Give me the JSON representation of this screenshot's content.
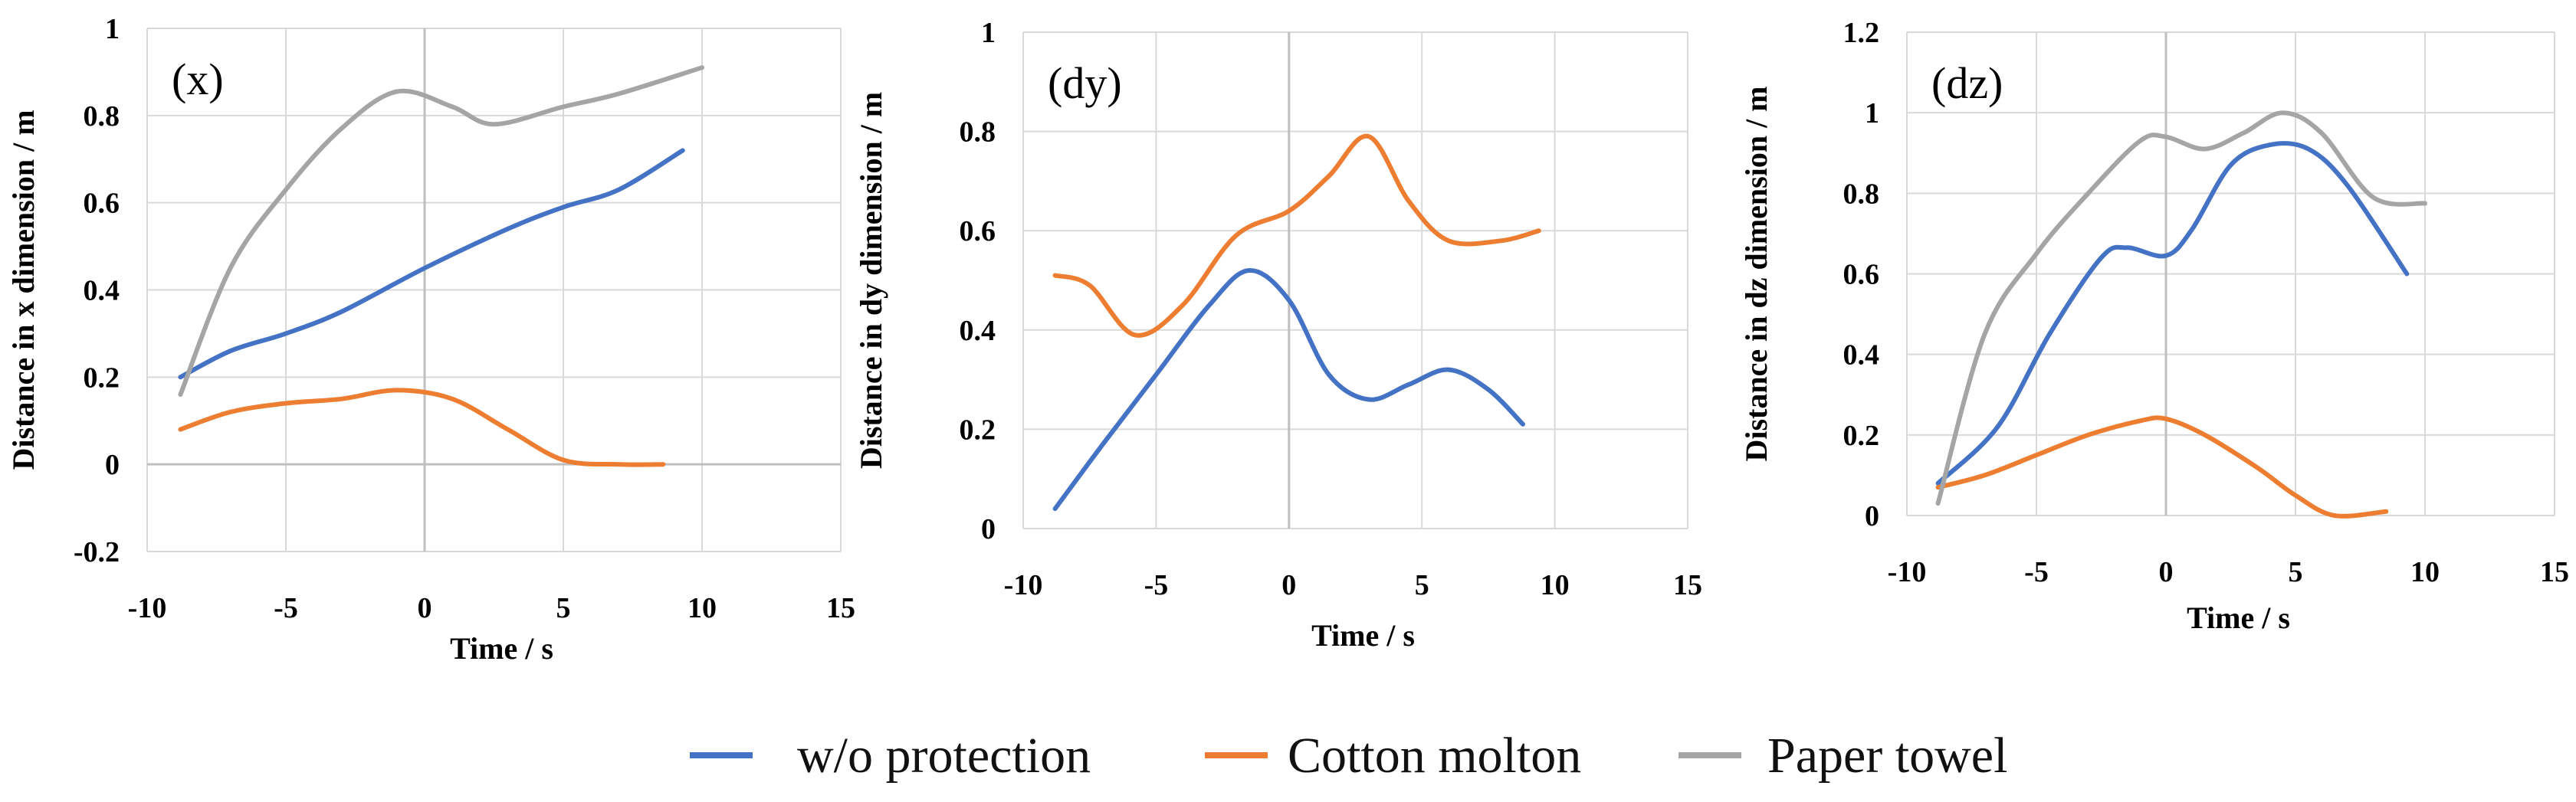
{
  "colors": {
    "w/o protection": "#4472C4",
    "Cotton molton": "#ED7D31",
    "Paper towel": "#A5A5A5",
    "grid": "#D9D9D9",
    "zero_axis": "#BFBFBF"
  },
  "legend": {
    "items": [
      "w/o protection",
      "Cotton molton",
      "Paper towel"
    ],
    "position": "bottom-center"
  },
  "chart_data": [
    {
      "type": "line",
      "panel_label": "(x)",
      "title": "",
      "xlabel": "Time / s",
      "ylabel": "Distance in x dimension / m",
      "xlim": [
        -10,
        15
      ],
      "ylim": [
        -0.2,
        1
      ],
      "xticks": [
        -10,
        -5,
        0,
        5,
        10,
        15
      ],
      "yticks": [
        -0.2,
        0,
        0.2,
        0.4,
        0.6,
        0.8,
        1
      ],
      "ytick_labels": [
        "-0.2",
        "0",
        "0.2",
        "0.4",
        "0.6",
        "0.8",
        "1"
      ],
      "series": [
        {
          "name": "w/o protection",
          "x": [
            -8.8,
            -7,
            -5,
            -3,
            0,
            3,
            5,
            7,
            9.3
          ],
          "y": [
            0.2,
            0.26,
            0.3,
            0.35,
            0.45,
            0.54,
            0.59,
            0.63,
            0.72
          ]
        },
        {
          "name": "Cotton molton",
          "x": [
            -8.8,
            -7,
            -5,
            -3,
            -1,
            1,
            3,
            5,
            7,
            8.6
          ],
          "y": [
            0.08,
            0.12,
            0.14,
            0.15,
            0.17,
            0.15,
            0.08,
            0.01,
            0.0,
            0.0
          ]
        },
        {
          "name": "Paper towel",
          "x": [
            -8.8,
            -7,
            -5,
            -3,
            -1,
            1,
            2.5,
            5,
            7,
            10
          ],
          "y": [
            0.16,
            0.45,
            0.63,
            0.77,
            0.855,
            0.82,
            0.78,
            0.82,
            0.85,
            0.91
          ]
        }
      ]
    },
    {
      "type": "line",
      "panel_label": "(dy)",
      "title": "",
      "xlabel": "Time / s",
      "ylabel": "Distance in dy dimension / m",
      "xlim": [
        -10,
        15
      ],
      "ylim": [
        0,
        1
      ],
      "xticks": [
        -10,
        -5,
        0,
        5,
        10,
        15
      ],
      "yticks": [
        0,
        0.2,
        0.4,
        0.6,
        0.8,
        1
      ],
      "ytick_labels": [
        "0",
        "0.2",
        "0.4",
        "0.6",
        "0.8",
        "1"
      ],
      "series": [
        {
          "name": "w/o protection",
          "x": [
            -8.8,
            -7,
            -5,
            -3,
            -1.5,
            0,
            1.5,
            3,
            4.5,
            6,
            7.5,
            8.8
          ],
          "y": [
            0.04,
            0.17,
            0.31,
            0.45,
            0.52,
            0.46,
            0.31,
            0.26,
            0.29,
            0.32,
            0.28,
            0.21
          ]
        },
        {
          "name": "Cotton molton",
          "x": [
            -8.8,
            -7.5,
            -5.8,
            -4,
            -2,
            0,
            1.5,
            3,
            4.5,
            6,
            8,
            9.4
          ],
          "y": [
            0.51,
            0.49,
            0.39,
            0.45,
            0.59,
            0.64,
            0.71,
            0.79,
            0.66,
            0.58,
            0.58,
            0.6
          ]
        }
      ]
    },
    {
      "type": "line",
      "panel_label": "(dz)",
      "title": "",
      "xlabel": "Time / s",
      "ylabel": "Distance in dz dimension / m",
      "xlim": [
        -10,
        15
      ],
      "ylim": [
        0,
        1.2
      ],
      "xticks": [
        -10,
        -5,
        0,
        5,
        10,
        15
      ],
      "yticks": [
        0,
        0.2,
        0.4,
        0.6,
        0.8,
        1,
        1.2
      ],
      "ytick_labels": [
        "0",
        "0.2",
        "0.4",
        "0.6",
        "0.8",
        "1",
        "1.2"
      ],
      "series": [
        {
          "name": "w/o protection",
          "x": [
            -8.8,
            -6.5,
            -4.5,
            -2.5,
            -1.5,
            0,
            1,
            2.5,
            4,
            5.5,
            7,
            9.3
          ],
          "y": [
            0.08,
            0.22,
            0.45,
            0.64,
            0.665,
            0.645,
            0.71,
            0.87,
            0.92,
            0.91,
            0.82,
            0.6
          ]
        },
        {
          "name": "Cotton molton",
          "x": [
            -8.8,
            -7,
            -5,
            -3,
            -1,
            0,
            1.5,
            3.5,
            5,
            6.5,
            8.5
          ],
          "y": [
            0.07,
            0.1,
            0.15,
            0.2,
            0.235,
            0.24,
            0.2,
            0.12,
            0.05,
            0.0,
            0.01
          ]
        },
        {
          "name": "Paper towel",
          "x": [
            -8.8,
            -7,
            -5,
            -3,
            -1,
            0,
            1.5,
            3,
            4.5,
            6,
            8,
            10
          ],
          "y": [
            0.03,
            0.45,
            0.65,
            0.8,
            0.93,
            0.94,
            0.91,
            0.95,
            1.0,
            0.95,
            0.79,
            0.775
          ]
        }
      ]
    }
  ]
}
